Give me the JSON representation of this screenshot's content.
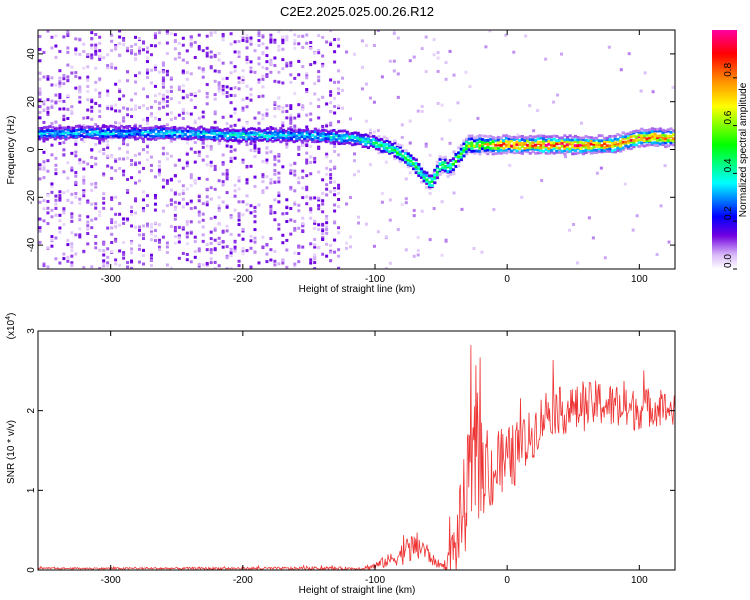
{
  "page": {
    "title": "C2E2.2025.025.00.26.R12"
  },
  "chart_data": [
    {
      "type": "heatmap",
      "title": "C2E2.2025.025.00.26.R12",
      "xlabel": "Height of straight line (km)",
      "ylabel": "Frequency (Hz)",
      "xlim": [
        -355,
        127
      ],
      "ylim": [
        -50,
        50
      ],
      "x_ticks": [
        -300,
        -200,
        -100,
        0,
        100
      ],
      "y_ticks": [
        -40,
        -20,
        0,
        20,
        40
      ],
      "colorbar": {
        "label": "Normalized spectral amplitude",
        "range": [
          0,
          1
        ],
        "ticks": [
          "0.0",
          "0.2",
          "0.4",
          "0.6",
          "0.8"
        ],
        "colors": [
          "#ffffff",
          "#d8b8f8",
          "#7000e0",
          "#0000ff",
          "#00ffff",
          "#00ff00",
          "#ffff00",
          "#ff8000",
          "#ff0000",
          "#ff00a0"
        ]
      },
      "ridge": {
        "x": [
          -355,
          -300,
          -250,
          -200,
          -150,
          -120,
          -100,
          -85,
          -70,
          -62,
          -57,
          -50,
          -44,
          -38,
          -30,
          -20,
          -10,
          0,
          20,
          50,
          80,
          100,
          127
        ],
        "frequency": [
          7,
          7,
          7,
          6,
          6,
          5,
          3,
          0,
          -6,
          -12,
          -14,
          -6,
          -8,
          -4,
          2,
          2,
          2,
          2,
          2,
          2,
          2,
          5,
          5
        ],
        "amplitude": [
          0.35,
          0.35,
          0.35,
          0.4,
          0.35,
          0.4,
          0.45,
          0.5,
          0.5,
          0.45,
          0.45,
          0.55,
          0.5,
          0.55,
          0.65,
          0.7,
          0.8,
          0.85,
          0.9,
          0.95,
          0.9,
          0.9,
          0.85
        ]
      },
      "grid": false
    },
    {
      "type": "line",
      "xlabel": "Height of straight line (km)",
      "ylabel": "SNR (10 * v/v)",
      "y_multiplier": "(x10",
      "y_multiplier_exp": "4",
      "y_multiplier_close": ")",
      "xlim": [
        -355,
        127
      ],
      "ylim": [
        0,
        3
      ],
      "x_ticks": [
        -300,
        -200,
        -100,
        0,
        100
      ],
      "y_ticks": [
        0,
        1,
        2,
        3
      ],
      "series": [
        {
          "color": "#ee3333",
          "envelope": {
            "x": [
              -355,
              -110,
              -100,
              -85,
              -75,
              -65,
              -60,
              -55,
              -48,
              -40,
              -35,
              -30,
              -25,
              -15,
              0,
              15,
              30,
              50,
              70,
              90,
              110,
              127
            ],
            "mean": [
              0.02,
              0.02,
              0.05,
              0.15,
              0.25,
              0.3,
              0.2,
              0.1,
              0.05,
              0.25,
              0.6,
              1.0,
              1.35,
              1.2,
              1.35,
              1.6,
              2.0,
              2.0,
              2.1,
              2.0,
              2.05,
              2.0
            ],
            "spread": [
              0.01,
              0.02,
              0.05,
              0.1,
              0.18,
              0.2,
              0.12,
              0.06,
              0.04,
              0.35,
              0.55,
              0.7,
              0.75,
              0.5,
              0.45,
              0.35,
              0.3,
              0.3,
              0.3,
              0.28,
              0.25,
              0.2
            ]
          }
        }
      ],
      "grid": false
    }
  ]
}
